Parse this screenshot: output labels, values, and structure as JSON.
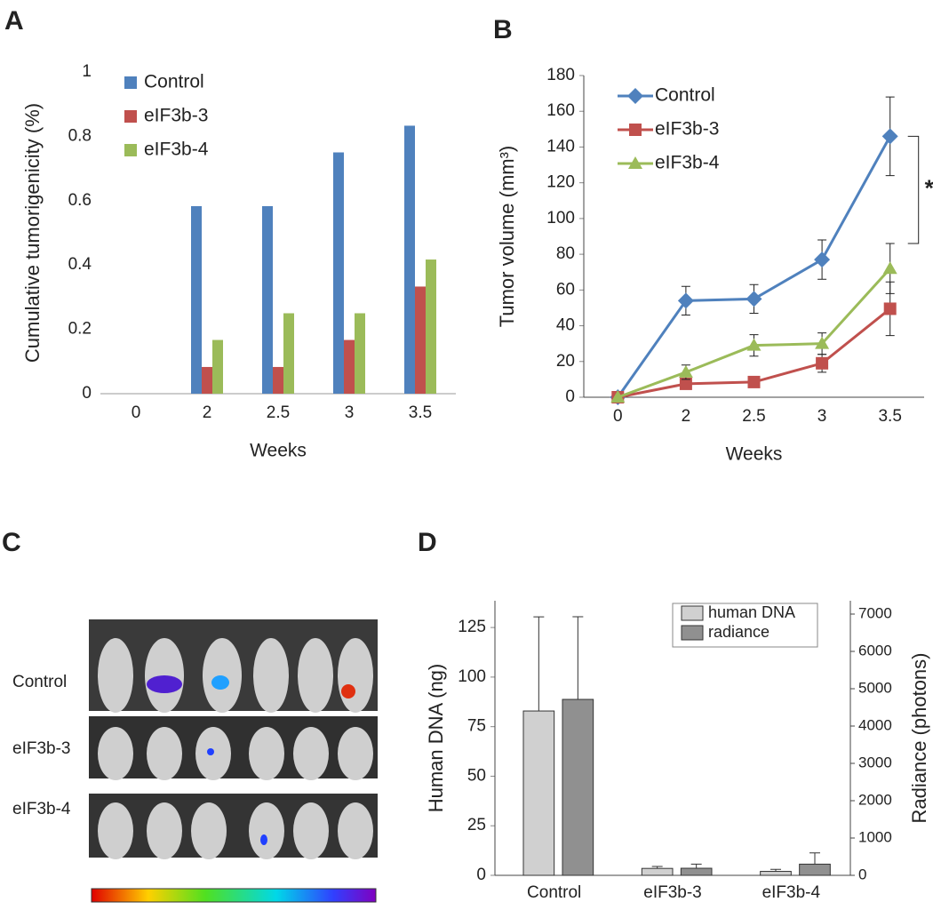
{
  "chart_data": [
    {
      "type": "bar",
      "panel": "A",
      "y_label": "Cumulative tumorigenicity (%)",
      "x_label": "Weeks",
      "categories": [
        "0",
        "2",
        "2.5",
        "3",
        "3.5"
      ],
      "series": [
        {
          "name": "Control",
          "color": "#4f81bd",
          "values": [
            0,
            0.583,
            0.583,
            0.75,
            0.833
          ]
        },
        {
          "name": "eIF3b-3",
          "color": "#c0504d",
          "values": [
            0,
            0.083,
            0.083,
            0.167,
            0.333
          ]
        },
        {
          "name": "eIF3b-4",
          "color": "#9bbb59",
          "values": [
            0,
            0.167,
            0.25,
            0.25,
            0.417
          ]
        }
      ],
      "ylim": [
        0,
        1
      ],
      "yticks": [
        0,
        0.2,
        0.4,
        0.6,
        0.8,
        1
      ]
    },
    {
      "type": "line",
      "panel": "B",
      "y_label": "Tumor volume (mm³)",
      "x_label": "Weeks",
      "annotation": "*",
      "categories": [
        "0",
        "2",
        "2.5",
        "3",
        "3.5"
      ],
      "series": [
        {
          "name": "Control",
          "color": "#4f81bd",
          "marker": "diamond",
          "values": [
            0,
            54,
            55,
            77,
            146
          ],
          "errors": [
            0,
            8,
            8,
            11,
            22
          ]
        },
        {
          "name": "eIF3b-3",
          "color": "#c0504d",
          "marker": "square",
          "values": [
            0,
            7.5,
            8.5,
            19,
            49.5
          ],
          "errors": [
            0,
            1,
            1,
            5,
            15
          ]
        },
        {
          "name": "eIF3b-4",
          "color": "#9bbb59",
          "marker": "triangle",
          "values": [
            0,
            14,
            29,
            30,
            72
          ],
          "errors": [
            0,
            4,
            6,
            6,
            14
          ]
        }
      ],
      "ylim": [
        0,
        180
      ],
      "yticks": [
        0,
        20,
        40,
        60,
        80,
        100,
        120,
        140,
        160,
        180
      ]
    },
    {
      "type": "bar",
      "panel": "D",
      "y_label": "Human DNA (ng)",
      "y2_label": "Radiance (photons)",
      "categories": [
        "Control",
        "eIF3b-3",
        "eIF3b-4"
      ],
      "series": [
        {
          "name": "human DNA",
          "color": "#d0d0d0",
          "values": [
            82.9,
            3.5,
            2
          ],
          "errors": [
            47.5,
            1,
            1
          ]
        },
        {
          "name": "radiance",
          "color": "#909090",
          "axis": "y2",
          "values": [
            4714,
            190,
            300
          ],
          "errors": [
            2215,
            110,
            300
          ]
        }
      ],
      "ylim": [
        0,
        138.5
      ],
      "yticks": [
        0,
        25,
        50,
        75,
        100,
        125
      ],
      "y2lim": [
        0,
        7357
      ],
      "y2ticks": [
        0,
        1000,
        2000,
        3000,
        4000,
        5000,
        6000,
        7000
      ]
    }
  ],
  "image_panel": {
    "panel": "C",
    "rows": [
      "Control",
      "eIF3b-3",
      "eIF3b-4"
    ]
  }
}
